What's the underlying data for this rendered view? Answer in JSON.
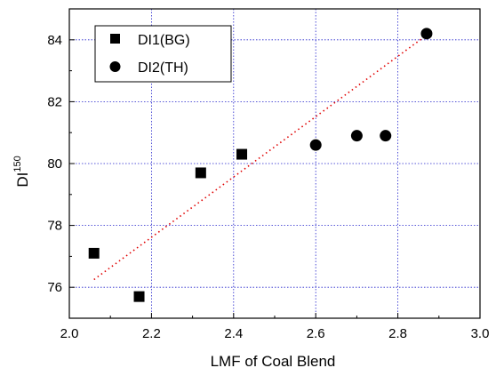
{
  "chart_data": {
    "type": "scatter",
    "xlabel": "LMF of Coal Blend",
    "ylabel_main": "DI",
    "ylabel_sup": "150",
    "xlim": [
      2.0,
      3.0
    ],
    "ylim": [
      75.0,
      85.0
    ],
    "x_ticks": [
      2.0,
      2.2,
      2.4,
      2.6,
      2.8,
      3.0
    ],
    "x_tick_labels": [
      "2.0",
      "2.2",
      "2.4",
      "2.6",
      "2.8",
      "3.0"
    ],
    "y_ticks": [
      76,
      78,
      80,
      82,
      84
    ],
    "y_tick_labels": [
      "76",
      "78",
      "80",
      "82",
      "84"
    ],
    "grid": true,
    "legend_position": "top-left",
    "series": [
      {
        "name": "DI1(BG)",
        "marker": "square",
        "color": "#000000",
        "points": [
          {
            "x": 2.06,
            "y": 77.1
          },
          {
            "x": 2.17,
            "y": 75.7
          },
          {
            "x": 2.32,
            "y": 79.7
          },
          {
            "x": 2.42,
            "y": 80.3
          }
        ]
      },
      {
        "name": "DI2(TH)",
        "marker": "circle",
        "color": "#000000",
        "points": [
          {
            "x": 2.6,
            "y": 80.6
          },
          {
            "x": 2.7,
            "y": 80.9
          },
          {
            "x": 2.77,
            "y": 80.9
          },
          {
            "x": 2.87,
            "y": 84.2
          }
        ]
      }
    ],
    "trendline": {
      "style": "dotted",
      "color": "#e00000",
      "x": [
        2.06,
        2.87
      ],
      "y": [
        76.25,
        84.15
      ]
    }
  }
}
